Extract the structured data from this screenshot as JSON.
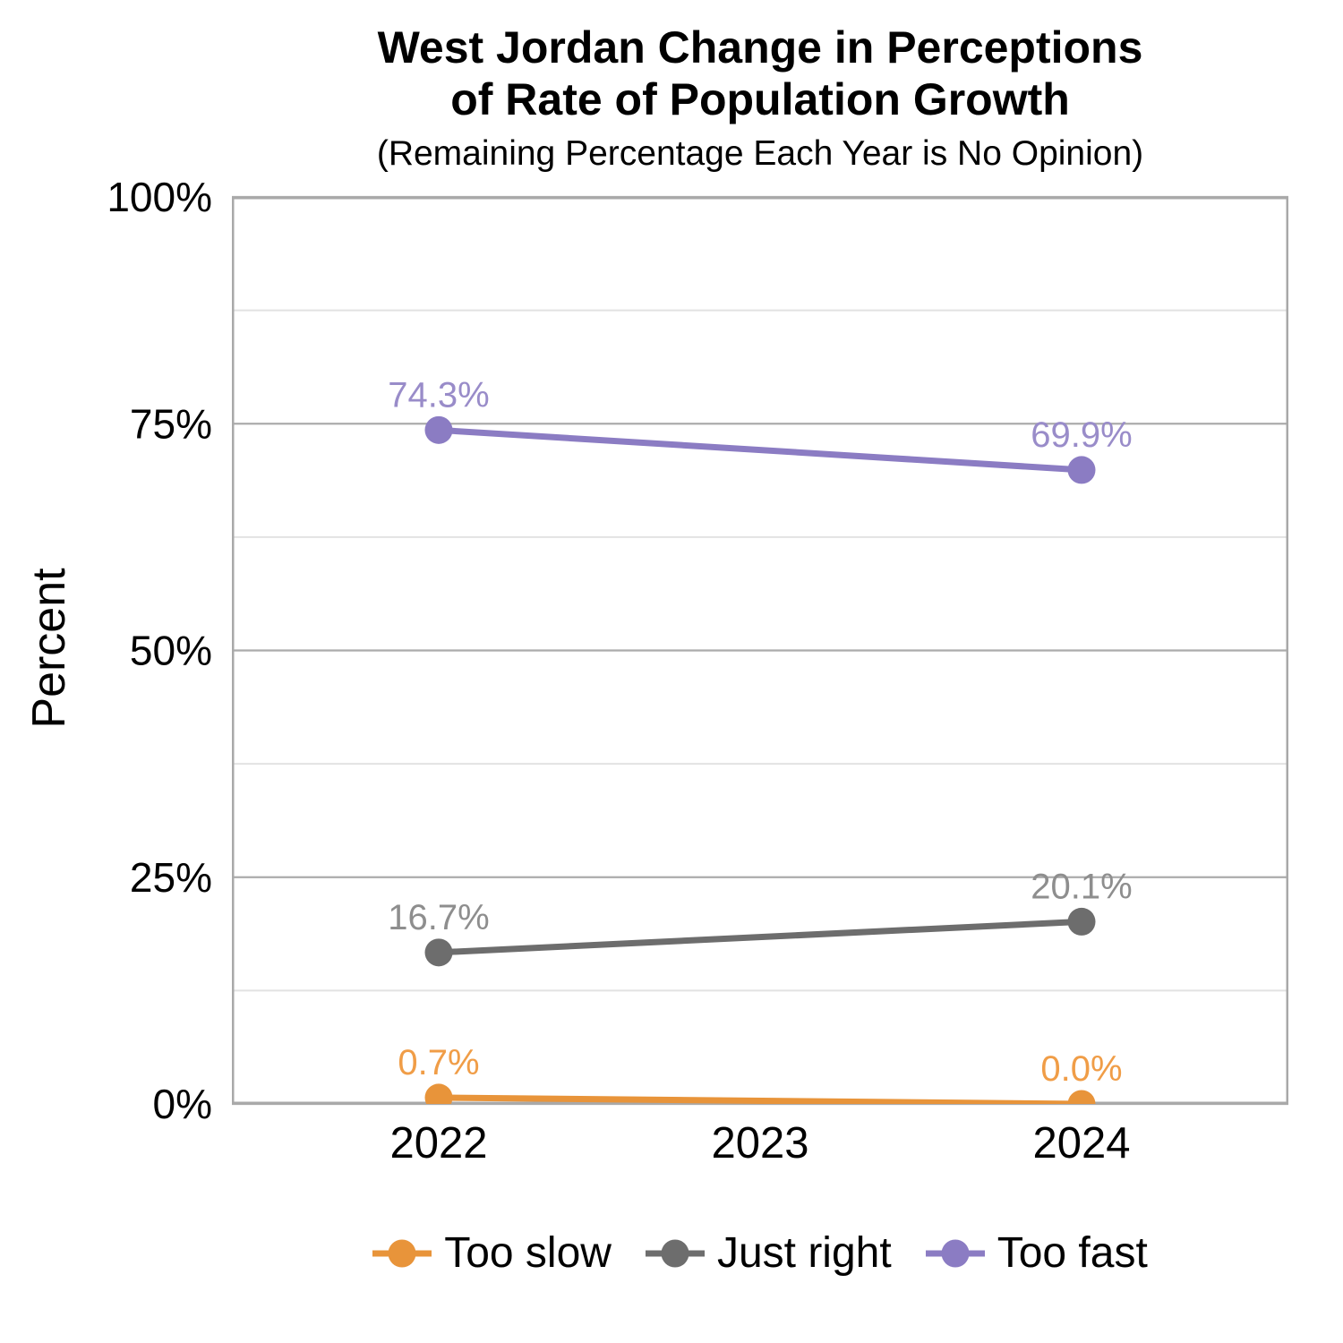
{
  "title": {
    "line1": "West Jordan Change in Perceptions",
    "line2": "of Rate of Population Growth",
    "subtitle": "(Remaining Percentage Each Year is No Opinion)"
  },
  "colors": {
    "background": "#FFFFFF",
    "text": "#000000",
    "grid_major": "#ABABAB",
    "grid_minor": "#E2E2E2",
    "panel_border": "#A9A9A9"
  },
  "chart_data": {
    "type": "line",
    "title": "West Jordan Change in Perceptions of Rate of Population Growth",
    "subtitle": "(Remaining Percentage Each Year is No Opinion)",
    "xlabel": "",
    "ylabel": "Percent",
    "categories": [
      "2022",
      "2023",
      "2024"
    ],
    "ylim": [
      0,
      100
    ],
    "y_tick_values": [
      0,
      25,
      50,
      75,
      100
    ],
    "y_tick_labels": [
      "0%",
      "25%",
      "50%",
      "75%",
      "100%"
    ],
    "y_minor_ticks": [
      12.5,
      37.5,
      62.5,
      87.5
    ],
    "grid": "horizontal major and minor, panel border on all sides",
    "legend_position": "bottom",
    "series": [
      {
        "name": "Too slow",
        "color": "#E8943A",
        "label_color": "#F09D47",
        "values": [
          0.7,
          null,
          0.0
        ],
        "point_labels": [
          "0.7%",
          null,
          "0.0%"
        ]
      },
      {
        "name": "Just right",
        "color": "#6D6D6D",
        "label_color": "#8E8E8E",
        "values": [
          16.7,
          null,
          20.1
        ],
        "point_labels": [
          "16.7%",
          null,
          "20.1%"
        ]
      },
      {
        "name": "Too fast",
        "color": "#8B7CC3",
        "label_color": "#998CC9",
        "values": [
          74.3,
          null,
          69.9
        ],
        "point_labels": [
          "74.3%",
          null,
          "69.9%"
        ]
      }
    ]
  }
}
